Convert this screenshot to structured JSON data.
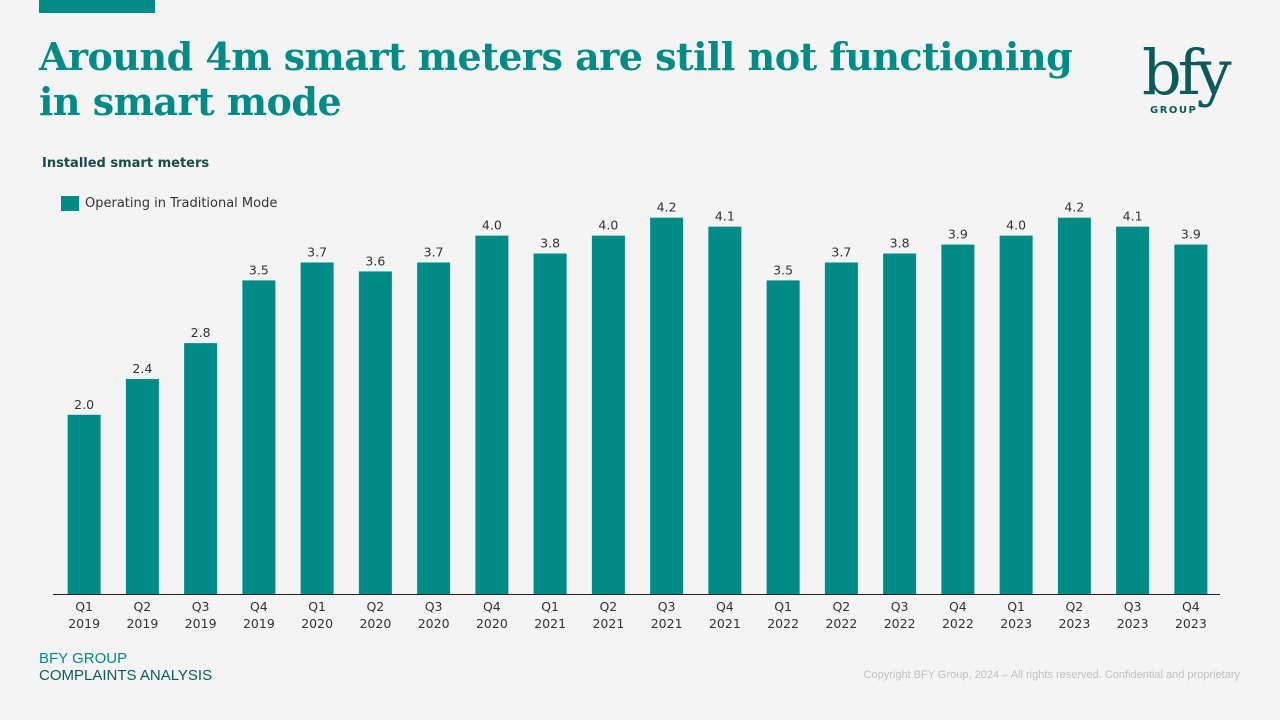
{
  "slide": {
    "title": "Around 4m smart meters are still not functioning in smart mode",
    "subtitle": "Installed smart meters",
    "logo": {
      "text": "bfy",
      "subtext": "GROUP"
    },
    "footer": {
      "line1": "BFY GROUP",
      "line2": "COMPLAINTS ANALYSIS",
      "copyright": "Copyright BFY Group, 2024 – All rights reserved. Confidential and proprietary"
    },
    "accent_color": "#008b86"
  },
  "chart_data": {
    "type": "bar",
    "title": "Installed smart meters",
    "xlabel": "",
    "ylabel": "",
    "ylim": [
      0,
      4.2
    ],
    "grid": false,
    "legend_position": "top-left",
    "categories": [
      [
        "Q1",
        "2019"
      ],
      [
        "Q2",
        "2019"
      ],
      [
        "Q3",
        "2019"
      ],
      [
        "Q4",
        "2019"
      ],
      [
        "Q1",
        "2020"
      ],
      [
        "Q2",
        "2020"
      ],
      [
        "Q3",
        "2020"
      ],
      [
        "Q4",
        "2020"
      ],
      [
        "Q1",
        "2021"
      ],
      [
        "Q2",
        "2021"
      ],
      [
        "Q3",
        "2021"
      ],
      [
        "Q4",
        "2021"
      ],
      [
        "Q1",
        "2022"
      ],
      [
        "Q2",
        "2022"
      ],
      [
        "Q3",
        "2022"
      ],
      [
        "Q4",
        "2022"
      ],
      [
        "Q1",
        "2023"
      ],
      [
        "Q2",
        "2023"
      ],
      [
        "Q3",
        "2023"
      ],
      [
        "Q4",
        "2023"
      ]
    ],
    "series": [
      {
        "name": "Operating in Traditional Mode",
        "color": "#008b86",
        "values": [
          2.0,
          2.4,
          2.8,
          3.5,
          3.7,
          3.6,
          3.7,
          4.0,
          3.8,
          4.0,
          4.2,
          4.1,
          3.5,
          3.7,
          3.8,
          3.9,
          4.0,
          4.2,
          4.1,
          3.9
        ],
        "labels": [
          "2.0",
          "2.4",
          "2.8",
          "3.5",
          "3.7",
          "3.6",
          "3.7",
          "4.0",
          "3.8",
          "4.0",
          "4.2",
          "4.1",
          "3.5",
          "3.7",
          "3.8",
          "3.9",
          "4.0",
          "4.2",
          "4.1",
          "3.9"
        ]
      }
    ]
  }
}
